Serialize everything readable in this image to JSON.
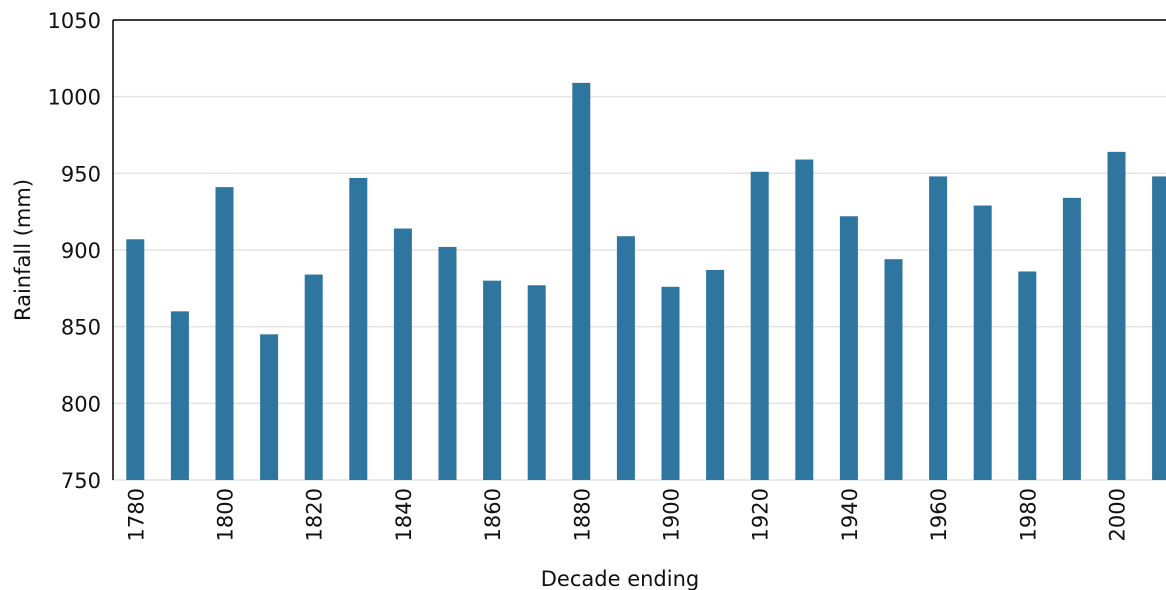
{
  "chart_data": {
    "type": "bar",
    "x_label": "Decade ending",
    "y_label": "Rainfall (mm)",
    "categories": [
      "1780",
      null,
      "1800",
      null,
      "1820",
      null,
      "1840",
      null,
      "1860",
      null,
      "1880",
      null,
      "1900",
      null,
      "1920",
      null,
      "1940",
      null,
      "1960",
      null,
      "1980",
      null,
      "2000",
      null
    ],
    "values": [
      907,
      860,
      941,
      845,
      884,
      947,
      914,
      902,
      880,
      877,
      1009,
      909,
      876,
      887,
      951,
      959,
      922,
      894,
      948,
      929,
      886,
      934,
      964,
      948
    ],
    "color": "#2e76a0",
    "ylim": [
      750,
      1050
    ],
    "yticks": [
      750,
      800,
      850,
      900,
      950,
      1000,
      1050
    ],
    "grid": true
  }
}
